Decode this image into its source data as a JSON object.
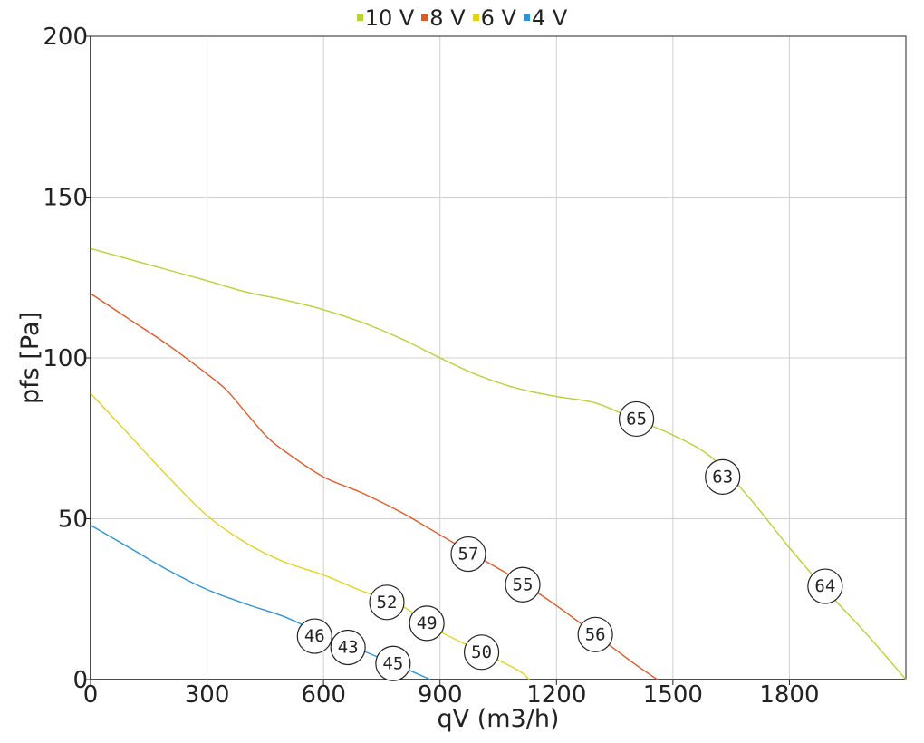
{
  "chart_data": {
    "type": "line",
    "xlabel": "qV (m3/h)",
    "ylabel": "pfs [Pa]",
    "xlim": [
      0,
      2100
    ],
    "ylim": [
      0,
      200
    ],
    "x_ticks": [
      "0",
      "300",
      "600",
      "900",
      "1200",
      "1500",
      "1800"
    ],
    "y_ticks": [
      "0",
      "50",
      "100",
      "150",
      "200"
    ],
    "grid": true,
    "legend_position": "top-center",
    "series": [
      {
        "name": "10 V",
        "color": "#b5d334",
        "points": [
          [
            0,
            134
          ],
          [
            150,
            129
          ],
          [
            300,
            124
          ],
          [
            400,
            120.5
          ],
          [
            500,
            118
          ],
          [
            600,
            115
          ],
          [
            700,
            111
          ],
          [
            800,
            106
          ],
          [
            900,
            100
          ],
          [
            1000,
            94.5
          ],
          [
            1100,
            90.5
          ],
          [
            1200,
            88
          ],
          [
            1300,
            86
          ],
          [
            1400,
            81
          ],
          [
            1500,
            76
          ],
          [
            1600,
            69
          ],
          [
            1700,
            56
          ],
          [
            1800,
            41
          ],
          [
            1900,
            27
          ],
          [
            2000,
            14
          ],
          [
            2100,
            0
          ]
        ]
      },
      {
        "name": "8 V",
        "color": "#e05a28",
        "points": [
          [
            0,
            120
          ],
          [
            100,
            112
          ],
          [
            200,
            104
          ],
          [
            300,
            95
          ],
          [
            350,
            90
          ],
          [
            400,
            83
          ],
          [
            450,
            76
          ],
          [
            500,
            71
          ],
          [
            600,
            63
          ],
          [
            700,
            58
          ],
          [
            800,
            52
          ],
          [
            900,
            45
          ],
          [
            1000,
            38
          ],
          [
            1100,
            31
          ],
          [
            1200,
            23
          ],
          [
            1300,
            14
          ],
          [
            1400,
            5
          ],
          [
            1460,
            0
          ]
        ]
      },
      {
        "name": "6 V",
        "color": "#e2d320",
        "points": [
          [
            0,
            89
          ],
          [
            100,
            76
          ],
          [
            200,
            63
          ],
          [
            300,
            51
          ],
          [
            400,
            42.5
          ],
          [
            500,
            36.5
          ],
          [
            600,
            32.5
          ],
          [
            700,
            27.5
          ],
          [
            800,
            23
          ],
          [
            900,
            15
          ],
          [
            1000,
            9
          ],
          [
            1100,
            3
          ],
          [
            1130,
            0
          ]
        ]
      },
      {
        "name": "4 V",
        "color": "#2f94d6",
        "points": [
          [
            0,
            48
          ],
          [
            100,
            41
          ],
          [
            200,
            34
          ],
          [
            300,
            28
          ],
          [
            400,
            23.5
          ],
          [
            500,
            19.5
          ],
          [
            600,
            14
          ],
          [
            700,
            9
          ],
          [
            800,
            4
          ],
          [
            875,
            0
          ]
        ]
      }
    ],
    "annotations": [
      {
        "label": "65",
        "x": 1406,
        "y": 81
      },
      {
        "label": "63",
        "x": 1628,
        "y": 63
      },
      {
        "label": "64",
        "x": 1892,
        "y": 29
      },
      {
        "label": "57",
        "x": 973,
        "y": 39
      },
      {
        "label": "55",
        "x": 1113,
        "y": 29.5
      },
      {
        "label": "56",
        "x": 1300,
        "y": 14
      },
      {
        "label": "52",
        "x": 763,
        "y": 24
      },
      {
        "label": "49",
        "x": 866,
        "y": 17.5
      },
      {
        "label": "50",
        "x": 1007,
        "y": 8.5
      },
      {
        "label": "46",
        "x": 577,
        "y": 13.5
      },
      {
        "label": "43",
        "x": 663,
        "y": 10
      },
      {
        "label": "45",
        "x": 779,
        "y": 5
      }
    ]
  }
}
